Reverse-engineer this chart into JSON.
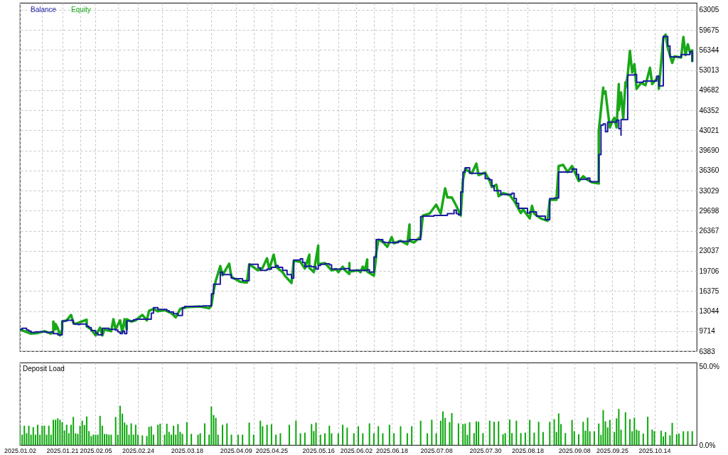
{
  "chart_data": [
    {
      "type": "line",
      "legend": "top left",
      "grid": true,
      "tick_labels": "y",
      "xlim": [
        "2025-01-02",
        "2025-11-02"
      ],
      "xticks": [
        {
          "value": "2025-01-02",
          "label": null
        },
        {
          "value": "2025-01-12",
          "label": null
        },
        {
          "value": "2025-01-21",
          "label": null
        },
        {
          "value": "2025-01-29",
          "label": null
        },
        {
          "value": "2025-02-05",
          "label": null
        },
        {
          "value": "2025-02-15",
          "label": null
        },
        {
          "value": "2025-02-24",
          "label": null
        },
        {
          "value": "2025-03-07",
          "label": null
        },
        {
          "value": "2025-03-18",
          "label": null
        },
        {
          "value": "2025-03-29",
          "label": null
        },
        {
          "value": "2025-04-09",
          "label": null
        },
        {
          "value": "2025-04-17",
          "label": null
        },
        {
          "value": "2025-04-25",
          "label": null
        },
        {
          "value": "2025-05-06",
          "label": null
        },
        {
          "value": "2025-05-16",
          "label": null
        },
        {
          "value": "2025-05-25",
          "label": null
        },
        {
          "value": "2025-06-02",
          "label": null
        },
        {
          "value": "2025-06-10",
          "label": null
        },
        {
          "value": "2025-06-18",
          "label": null
        },
        {
          "value": "2025-06-28",
          "label": null
        },
        {
          "value": "2025-07-08",
          "label": null
        },
        {
          "value": "2025-07-19",
          "label": null
        },
        {
          "value": "2025-07-30",
          "label": null
        },
        {
          "value": "2025-08-09",
          "label": null
        },
        {
          "value": "2025-08-18",
          "label": null
        },
        {
          "value": "2025-08-29",
          "label": null
        },
        {
          "value": "2025-09-08",
          "label": null
        },
        {
          "value": "2025-09-17",
          "label": null
        },
        {
          "value": "2025-09-25",
          "label": null
        },
        {
          "value": "2025-10-05",
          "label": null
        },
        {
          "value": "2025-10-14",
          "label": null
        },
        {
          "value": "2025-10-24",
          "label": null
        }
      ],
      "ylim": [
        6383,
        64170
      ],
      "yticks": [
        6383,
        9714,
        13044,
        16375,
        19706,
        23037,
        26367,
        29698,
        33029,
        36360,
        39690,
        43021,
        46352,
        49682,
        53013,
        56344,
        59675,
        63005
      ],
      "series": [
        {
          "name": "Balance",
          "type": "step",
          "color": "#1a1aa0",
          "x": [
            "2025-01-02",
            "2025-01-03",
            "2025-01-05",
            "2025-01-06",
            "2025-01-07",
            "2025-01-09",
            "2025-01-14",
            "2025-01-16",
            "2025-01-17",
            "2025-01-19",
            "2025-01-21",
            "2025-01-23",
            "2025-01-26",
            "2025-01-28",
            "2025-01-29",
            "2025-02-01",
            "2025-02-02",
            "2025-02-03",
            "2025-02-05",
            "2025-02-06",
            "2025-02-08",
            "2025-02-11",
            "2025-02-14",
            "2025-02-15",
            "2025-02-16",
            "2025-02-17",
            "2025-02-18",
            "2025-02-19",
            "2025-02-22",
            "2025-02-23",
            "2025-03-02",
            "2025-03-03",
            "2025-03-05",
            "2025-03-09",
            "2025-03-10",
            "2025-03-12",
            "2025-03-14",
            "2025-03-16",
            "2025-03-17",
            "2025-03-25",
            "2025-03-29",
            "2025-03-30",
            "2025-04-02",
            "2025-04-03",
            "2025-04-07",
            "2025-04-08",
            "2025-04-12",
            "2025-04-15",
            "2025-04-19",
            "2025-04-20",
            "2025-04-23",
            "2025-04-25",
            "2025-04-27",
            "2025-04-28",
            "2025-04-30",
            "2025-05-02",
            "2025-05-04",
            "2025-05-05",
            "2025-05-08",
            "2025-05-09",
            "2025-05-10",
            "2025-05-11",
            "2025-05-13",
            "2025-05-15",
            "2025-05-16",
            "2025-05-17",
            "2025-05-19",
            "2025-05-21",
            "2025-05-22",
            "2025-05-28",
            "2025-05-30",
            "2025-06-07",
            "2025-06-08",
            "2025-06-10",
            "2025-06-11",
            "2025-06-14",
            "2025-06-15",
            "2025-06-21",
            "2025-06-26",
            "2025-07-01",
            "2025-07-02",
            "2025-07-07",
            "2025-07-13",
            "2025-07-16",
            "2025-07-17",
            "2025-07-18",
            "2025-07-19",
            "2025-07-20",
            "2025-07-21",
            "2025-07-23",
            "2025-07-30",
            "2025-08-01",
            "2025-08-02",
            "2025-08-03",
            "2025-08-06",
            "2025-08-11",
            "2025-08-12",
            "2025-08-13",
            "2025-08-14",
            "2025-08-18",
            "2025-08-19",
            "2025-08-22",
            "2025-08-26",
            "2025-08-28",
            "2025-08-30",
            "2025-09-01",
            "2025-09-07",
            "2025-09-09",
            "2025-09-10",
            "2025-09-14",
            "2025-09-15",
            "2025-09-19",
            "2025-09-20",
            "2025-09-21",
            "2025-09-22",
            "2025-09-23",
            "2025-09-27",
            "2025-09-28",
            "2025-09-29",
            "2025-09-29",
            "2025-10-02",
            "2025-10-05",
            "2025-10-06",
            "2025-10-09",
            "2025-10-15",
            "2025-10-16",
            "2025-10-18",
            "2025-10-20",
            "2025-10-21",
            "2025-10-26",
            "2025-10-30",
            "2025-10-31"
          ],
          "values": [
            10000,
            10200,
            9900,
            9700,
            9500,
            9600,
            9500,
            9600,
            9300,
            9100,
            11400,
            11500,
            10900,
            10800,
            10900,
            10500,
            10300,
            9800,
            9400,
            9100,
            10200,
            10000,
            9900,
            9600,
            9300,
            9700,
            9300,
            11400,
            11600,
            11700,
            12700,
            13600,
            13300,
            13100,
            12900,
            12600,
            12300,
            13600,
            13800,
            13900,
            15900,
            17500,
            19500,
            19100,
            18500,
            18400,
            18100,
            20800,
            20200,
            19800,
            20000,
            20300,
            20600,
            20300,
            19800,
            19100,
            18500,
            21500,
            21700,
            21100,
            20400,
            20500,
            20400,
            20000,
            20600,
            20800,
            20900,
            20700,
            20000,
            20100,
            19800,
            19900,
            19500,
            22000,
            24900,
            24500,
            24400,
            24600,
            24900,
            28700,
            28800,
            28900,
            29200,
            29800,
            29200,
            29000,
            32800,
            36100,
            36800,
            35900,
            35000,
            34800,
            33800,
            33000,
            32400,
            32600,
            31700,
            30900,
            30100,
            29300,
            29500,
            28800,
            28200,
            31700,
            31800,
            36100,
            36600,
            35700,
            34900,
            35100,
            34500,
            39000,
            43900,
            44100,
            42800,
            44400,
            44700,
            43300,
            42200,
            44800,
            52200,
            52300,
            51000,
            51200,
            52000,
            50400,
            58600,
            57000,
            55200,
            55600,
            56100,
            54500
          ]
        },
        {
          "name": "Equity",
          "color": "#18a818",
          "x": [
            "2025-01-02",
            "2025-01-04",
            "2025-01-07",
            "2025-01-10",
            "2025-01-13",
            "2025-01-16",
            "2025-01-17",
            "2025-01-17",
            "2025-01-18",
            "2025-01-18",
            "2025-01-19",
            "2025-01-20",
            "2025-01-21",
            "2025-01-21",
            "2025-01-23",
            "2025-01-25",
            "2025-01-26",
            "2025-01-27",
            "2025-01-29",
            "2025-02-01",
            "2025-02-01",
            "2025-02-03",
            "2025-02-05",
            "2025-02-07",
            "2025-02-08",
            "2025-02-09",
            "2025-02-12",
            "2025-02-13",
            "2025-02-14",
            "2025-02-16",
            "2025-02-17",
            "2025-02-18",
            "2025-02-19",
            "2025-02-19",
            "2025-02-21",
            "2025-02-23",
            "2025-02-26",
            "2025-02-28",
            "2025-03-01",
            "2025-03-03",
            "2025-03-05",
            "2025-03-08",
            "2025-03-11",
            "2025-03-13",
            "2025-03-15",
            "2025-03-18",
            "2025-03-24",
            "2025-03-28",
            "2025-03-29",
            "2025-03-30",
            "2025-03-31",
            "2025-04-02",
            "2025-04-03",
            "2025-04-06",
            "2025-04-07",
            "2025-04-09",
            "2025-04-11",
            "2025-04-13",
            "2025-04-14",
            "2025-04-15",
            "2025-04-19",
            "2025-04-21",
            "2025-04-23",
            "2025-04-24",
            "2025-04-26",
            "2025-04-27",
            "2025-04-30",
            "2025-05-01",
            "2025-05-04",
            "2025-05-05",
            "2025-05-08",
            "2025-05-10",
            "2025-05-12",
            "2025-05-12",
            "2025-05-14",
            "2025-05-16",
            "2025-05-16",
            "2025-05-19",
            "2025-05-22",
            "2025-05-24",
            "2025-05-25",
            "2025-05-27",
            "2025-05-28",
            "2025-05-30",
            "2025-05-30",
            "2025-05-30",
            "2025-06-03",
            "2025-06-04",
            "2025-06-05",
            "2025-06-06",
            "2025-06-07",
            "2025-06-07",
            "2025-06-10",
            "2025-06-11",
            "2025-06-11",
            "2025-06-12",
            "2025-06-14",
            "2025-06-16",
            "2025-06-18",
            "2025-06-19",
            "2025-06-22",
            "2025-06-25",
            "2025-06-26",
            "2025-06-26",
            "2025-06-28",
            "2025-07-01",
            "2025-07-02",
            "2025-07-05",
            "2025-07-08",
            "2025-07-10",
            "2025-07-12",
            "2025-07-13",
            "2025-07-15",
            "2025-07-17",
            "2025-07-19",
            "2025-07-20",
            "2025-07-21",
            "2025-07-24",
            "2025-07-26",
            "2025-07-27",
            "2025-07-30",
            "2025-08-01",
            "2025-08-02",
            "2025-08-04",
            "2025-08-05",
            "2025-08-07",
            "2025-08-10",
            "2025-08-12",
            "2025-08-15",
            "2025-08-16",
            "2025-08-19",
            "2025-08-20",
            "2025-08-21",
            "2025-08-24",
            "2025-08-27",
            "2025-08-28",
            "2025-08-31",
            "2025-09-01",
            "2025-09-03",
            "2025-09-05",
            "2025-09-07",
            "2025-09-10",
            "2025-09-12",
            "2025-09-14",
            "2025-09-16",
            "2025-09-19",
            "2025-09-19",
            "2025-09-21",
            "2025-09-21",
            "2025-09-22",
            "2025-09-23",
            "2025-09-24",
            "2025-09-25",
            "2025-09-26",
            "2025-09-27",
            "2025-09-28",
            "2025-09-28",
            "2025-09-29",
            "2025-09-30",
            "2025-10-01",
            "2025-10-01",
            "2025-10-02",
            "2025-10-03",
            "2025-10-04",
            "2025-10-05",
            "2025-10-06",
            "2025-10-08",
            "2025-10-10",
            "2025-10-12",
            "2025-10-13",
            "2025-10-16",
            "2025-10-16",
            "2025-10-18",
            "2025-10-19",
            "2025-10-20",
            "2025-10-22",
            "2025-10-23",
            "2025-10-26",
            "2025-10-27",
            "2025-10-28",
            "2025-10-29",
            "2025-10-30",
            "2025-10-31",
            "2025-10-31"
          ],
          "values": [
            10000,
            9700,
            9300,
            9400,
            9700,
            9300,
            9600,
            11300,
            10000,
            10900,
            10200,
            9000,
            10000,
            11300,
            11500,
            12400,
            11100,
            10900,
            11200,
            11600,
            10500,
            10000,
            9000,
            10300,
            9000,
            10000,
            9700,
            11700,
            10000,
            11500,
            9500,
            11700,
            10000,
            11700,
            11300,
            11500,
            12400,
            11500,
            13100,
            13400,
            13000,
            13200,
            12700,
            12000,
            13400,
            13700,
            13800,
            13500,
            14000,
            16400,
            18100,
            20500,
            19000,
            20900,
            18700,
            18300,
            17900,
            17800,
            17800,
            20800,
            19800,
            20200,
            21800,
            20000,
            22400,
            20400,
            19500,
            18900,
            17700,
            21400,
            21200,
            20100,
            22400,
            20200,
            19500,
            23900,
            20800,
            21000,
            19800,
            20000,
            19500,
            20400,
            19800,
            19200,
            21000,
            19600,
            19800,
            19500,
            20400,
            19800,
            21600,
            19600,
            18900,
            22000,
            22400,
            24900,
            24500,
            23700,
            25300,
            24300,
            24700,
            24100,
            27400,
            24700,
            24400,
            25400,
            28900,
            29200,
            30700,
            29200,
            33400,
            31900,
            31900,
            30500,
            28900,
            34800,
            36600,
            35900,
            37500,
            35600,
            36000,
            34600,
            33600,
            34000,
            32100,
            32600,
            32300,
            31300,
            29300,
            29900,
            28400,
            30500,
            29200,
            28400,
            28000,
            31500,
            31500,
            37100,
            37300,
            36100,
            37100,
            34600,
            35400,
            34800,
            34400,
            34200,
            42900,
            50100,
            49100,
            49500,
            46400,
            43500,
            44500,
            45100,
            43500,
            50700,
            46400,
            49300,
            44900,
            51000,
            50000,
            52200,
            56200,
            52600,
            54000,
            49900,
            50900,
            50500,
            53400,
            50700,
            52000,
            49900,
            58400,
            58900,
            56700,
            54200,
            55300,
            55100,
            58500,
            55500,
            57300,
            55900,
            56300,
            54500
          ]
        }
      ]
    },
    {
      "type": "bar",
      "title": "Deposit Load",
      "grid": "x",
      "color": "#0ca60c",
      "xlim": [
        "2025-01-02",
        "2025-11-02"
      ],
      "xticks": [
        {
          "value": "2025-01-02",
          "label": "2025.01.02"
        },
        {
          "value": "2025-01-12",
          "label": null
        },
        {
          "value": "2025-01-21",
          "label": "2025.01.21"
        },
        {
          "value": "2025-01-29",
          "label": null
        },
        {
          "value": "2025-02-05",
          "label": "2025.02.05"
        },
        {
          "value": "2025-02-15",
          "label": null
        },
        {
          "value": "2025-02-24",
          "label": "2025.02.24"
        },
        {
          "value": "2025-03-07",
          "label": null
        },
        {
          "value": "2025-03-18",
          "label": "2025.03.18"
        },
        {
          "value": "2025-03-29",
          "label": null
        },
        {
          "value": "2025-04-09",
          "label": "2025.04.09"
        },
        {
          "value": "2025-04-17",
          "label": null
        },
        {
          "value": "2025-04-25",
          "label": "2025.04.25"
        },
        {
          "value": "2025-05-06",
          "label": null
        },
        {
          "value": "2025-05-16",
          "label": "2025.05.16"
        },
        {
          "value": "2025-05-25",
          "label": null
        },
        {
          "value": "2025-06-02",
          "label": "2025.06.02"
        },
        {
          "value": "2025-06-10",
          "label": null
        },
        {
          "value": "2025-06-18",
          "label": "2025.06.18"
        },
        {
          "value": "2025-06-28",
          "label": null
        },
        {
          "value": "2025-07-08",
          "label": "2025.07.08"
        },
        {
          "value": "2025-07-19",
          "label": null
        },
        {
          "value": "2025-07-30",
          "label": "2025.07.30"
        },
        {
          "value": "2025-08-09",
          "label": null
        },
        {
          "value": "2025-08-18",
          "label": "2025.08.18"
        },
        {
          "value": "2025-08-29",
          "label": null
        },
        {
          "value": "2025-09-08",
          "label": "2025.09.08"
        },
        {
          "value": "2025-09-17",
          "label": null
        },
        {
          "value": "2025-09-25",
          "label": "2025.09.25"
        },
        {
          "value": "2025-10-05",
          "label": null
        },
        {
          "value": "2025-10-14",
          "label": "2025.10.14"
        },
        {
          "value": "2025-10-24",
          "label": null
        }
      ],
      "ylim": [
        0,
        52.5
      ],
      "yticks": [
        {
          "value": 50,
          "label": "50.0%"
        },
        {
          "value": 0,
          "label": "0.0%"
        }
      ],
      "x": [
        "2025-01-02",
        "2025-01-03",
        "2025-01-04",
        "2025-01-05",
        "2025-01-06",
        "2025-01-07",
        "2025-01-08",
        "2025-01-09",
        "2025-01-10",
        "2025-01-11",
        "2025-01-12",
        "2025-01-13",
        "2025-01-14",
        "2025-01-15",
        "2025-01-16",
        "2025-01-17",
        "2025-01-18",
        "2025-01-19",
        "2025-01-20",
        "2025-01-21",
        "2025-01-22",
        "2025-01-23",
        "2025-01-24",
        "2025-01-25",
        "2025-01-26",
        "2025-01-27",
        "2025-01-28",
        "2025-01-29",
        "2025-01-30",
        "2025-01-31",
        "2025-02-01",
        "2025-02-02",
        "2025-02-03",
        "2025-02-04",
        "2025-02-05",
        "2025-02-06",
        "2025-02-07",
        "2025-02-08",
        "2025-02-09",
        "2025-02-10",
        "2025-02-11",
        "2025-02-12",
        "2025-02-14",
        "2025-02-15",
        "2025-02-16",
        "2025-02-17",
        "2025-02-18",
        "2025-02-19",
        "2025-02-20",
        "2025-02-21",
        "2025-02-22",
        "2025-02-23",
        "2025-02-24",
        "2025-02-26",
        "2025-02-28",
        "2025-03-01",
        "2025-03-02",
        "2025-03-03",
        "2025-03-05",
        "2025-03-06",
        "2025-03-08",
        "2025-03-09",
        "2025-03-10",
        "2025-03-11",
        "2025-03-12",
        "2025-03-13",
        "2025-03-14",
        "2025-03-15",
        "2025-03-16",
        "2025-03-18",
        "2025-03-20",
        "2025-03-23",
        "2025-03-24",
        "2025-03-26",
        "2025-03-28",
        "2025-03-29",
        "2025-03-30",
        "2025-03-31",
        "2025-04-01",
        "2025-04-03",
        "2025-04-05",
        "2025-04-07",
        "2025-04-10",
        "2025-04-12",
        "2025-04-15",
        "2025-04-17",
        "2025-04-20",
        "2025-04-21",
        "2025-04-23",
        "2025-04-25",
        "2025-04-27",
        "2025-04-29",
        "2025-05-03",
        "2025-05-06",
        "2025-05-08",
        "2025-05-10",
        "2025-05-13",
        "2025-05-14",
        "2025-05-15",
        "2025-05-17",
        "2025-05-19",
        "2025-05-21",
        "2025-05-22",
        "2025-05-25",
        "2025-05-27",
        "2025-05-29",
        "2025-06-01",
        "2025-06-03",
        "2025-06-05",
        "2025-06-08",
        "2025-06-10",
        "2025-06-12",
        "2025-06-14",
        "2025-06-17",
        "2025-06-19",
        "2025-06-22",
        "2025-06-25",
        "2025-06-27",
        "2025-07-01",
        "2025-07-04",
        "2025-07-06",
        "2025-07-08",
        "2025-07-10",
        "2025-07-11",
        "2025-07-12",
        "2025-07-14",
        "2025-07-15",
        "2025-07-18",
        "2025-07-20",
        "2025-07-21",
        "2025-07-22",
        "2025-07-23",
        "2025-07-25",
        "2025-07-26",
        "2025-07-27",
        "2025-07-29",
        "2025-08-01",
        "2025-08-03",
        "2025-08-05",
        "2025-08-07",
        "2025-08-08",
        "2025-08-10",
        "2025-08-11",
        "2025-08-13",
        "2025-08-15",
        "2025-08-17",
        "2025-08-19",
        "2025-08-21",
        "2025-08-23",
        "2025-08-25",
        "2025-08-28",
        "2025-08-30",
        "2025-08-31",
        "2025-09-01",
        "2025-09-02",
        "2025-09-04",
        "2025-09-07",
        "2025-09-08",
        "2025-09-10",
        "2025-09-12",
        "2025-09-13",
        "2025-09-14",
        "2025-09-15",
        "2025-09-17",
        "2025-09-19",
        "2025-09-20",
        "2025-09-21",
        "2025-09-22",
        "2025-09-23",
        "2025-09-24",
        "2025-09-26",
        "2025-09-27",
        "2025-09-28",
        "2025-09-29",
        "2025-10-01",
        "2025-10-03",
        "2025-10-04",
        "2025-10-05",
        "2025-10-06",
        "2025-10-07",
        "2025-10-09",
        "2025-10-11",
        "2025-10-13",
        "2025-10-14",
        "2025-10-17",
        "2025-10-18",
        "2025-10-19",
        "2025-10-21",
        "2025-10-22",
        "2025-10-24",
        "2025-10-25",
        "2025-10-27",
        "2025-10-29",
        "2025-10-31"
      ],
      "values": [
        12.3,
        6.6,
        12.3,
        7.5,
        12.3,
        6.6,
        11.4,
        6.6,
        12.9,
        6.6,
        12.3,
        12.3,
        6.6,
        12.3,
        6.6,
        16.1,
        16.1,
        17.0,
        16.1,
        14.6,
        9.3,
        12.9,
        7.5,
        12.9,
        17.9,
        7.5,
        7.1,
        12.3,
        15.5,
        12.7,
        18.2,
        8.9,
        5.7,
        6.6,
        6.6,
        6.6,
        18.6,
        12.3,
        7.0,
        7.0,
        6.6,
        6.6,
        17.9,
        6.6,
        25.0,
        20.0,
        14.3,
        12.9,
        6.6,
        13.8,
        6.6,
        12.9,
        6.6,
        6.1,
        5.7,
        11.6,
        12.0,
        6.6,
        12.9,
        13.6,
        6.6,
        13.6,
        8.4,
        6.6,
        12.3,
        6.6,
        13.4,
        8.4,
        7.1,
        14.6,
        7.1,
        6.6,
        7.5,
        13.8,
        6.6,
        24.5,
        19.1,
        17.3,
        6.6,
        12.9,
        13.8,
        6.6,
        6.6,
        6.6,
        14.3,
        6.6,
        15.5,
        12.0,
        12.9,
        13.2,
        6.6,
        7.5,
        12.9,
        15.5,
        7.5,
        7.9,
        13.4,
        8.9,
        14.3,
        6.6,
        7.5,
        12.3,
        7.5,
        7.5,
        12.9,
        11.1,
        7.5,
        12.0,
        7.5,
        13.8,
        7.5,
        12.0,
        7.5,
        12.9,
        7.5,
        12.0,
        7.5,
        12.0,
        15.5,
        7.5,
        16.1,
        7.5,
        15.5,
        21.4,
        17.3,
        14.6,
        20.4,
        13.8,
        13.4,
        13.7,
        6.5,
        14.5,
        7.6,
        15.1,
        14.8,
        7.6,
        15.5,
        14.8,
        15.1,
        6.9,
        7.6,
        16.2,
        7.6,
        15.5,
        7.6,
        7.9,
        16.0,
        7.9,
        14.8,
        8.3,
        14.8,
        16.5,
        8.3,
        20.1,
        13.4,
        7.6,
        16.0,
        8.8,
        6.9,
        14.8,
        9.1,
        17.4,
        8.8,
        8.8,
        13.7,
        6.5,
        22.3,
        15.1,
        11.2,
        16.0,
        8.3,
        17.0,
        23.0,
        9.8,
        20.8,
        16.5,
        8.8,
        17.4,
        9.8,
        9.1,
        7.3,
        18.0,
        9.8,
        8.8,
        9.1,
        5.5,
        8.3,
        6.2,
        14.1,
        6.9,
        7.3,
        8.8,
        8.8,
        8.8
      ]
    }
  ]
}
